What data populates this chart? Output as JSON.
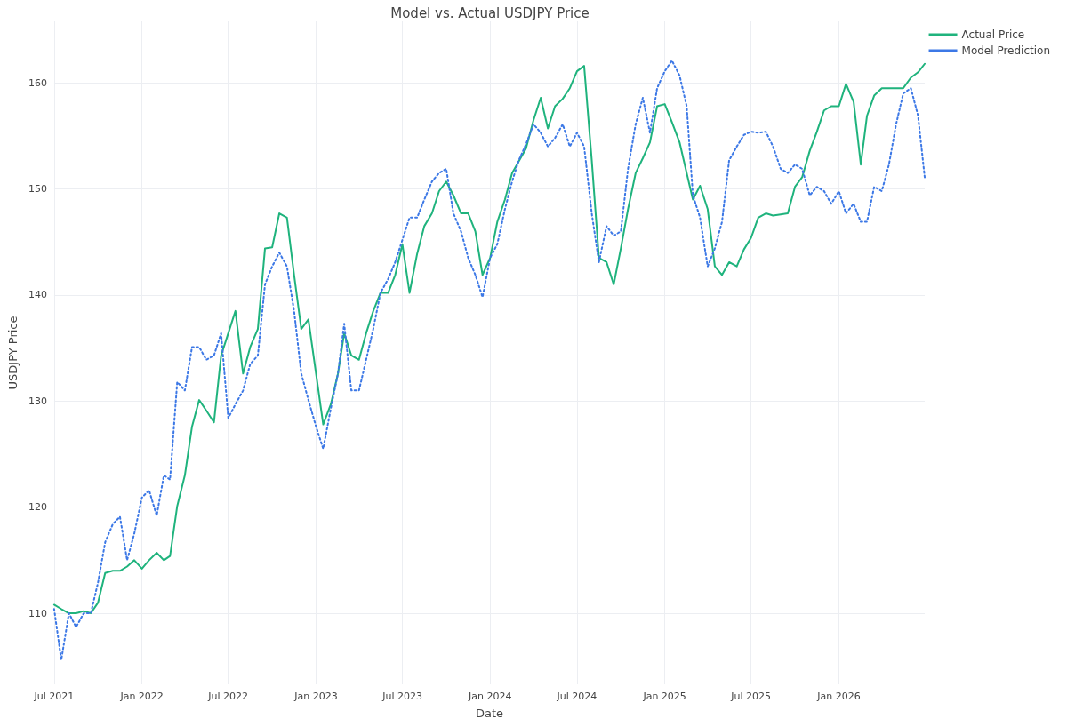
{
  "chart_data": {
    "type": "line",
    "title": "Model vs. Actual USDJPY Price",
    "xlabel": "Date",
    "ylabel": "USDJPY Price",
    "x": [
      "2021-07-01",
      "2021-07-16",
      "2021-08-01",
      "2021-08-16",
      "2021-09-01",
      "2021-09-16",
      "2021-10-01",
      "2021-10-16",
      "2021-11-01",
      "2021-11-16",
      "2021-12-01",
      "2021-12-16",
      "2022-01-01",
      "2022-01-16",
      "2022-02-01",
      "2022-02-16",
      "2022-03-01",
      "2022-03-16",
      "2022-04-01",
      "2022-04-16",
      "2022-05-01",
      "2022-05-16",
      "2022-06-01",
      "2022-06-16",
      "2022-07-01",
      "2022-07-16",
      "2022-08-01",
      "2022-08-16",
      "2022-09-01",
      "2022-09-16",
      "2022-10-01",
      "2022-10-16",
      "2022-11-01",
      "2022-11-16",
      "2022-12-01",
      "2022-12-16",
      "2023-01-01",
      "2023-01-16",
      "2023-02-01",
      "2023-02-16",
      "2023-03-01",
      "2023-03-16",
      "2023-04-01",
      "2023-04-16",
      "2023-05-01",
      "2023-05-16",
      "2023-06-01",
      "2023-06-16",
      "2023-07-01",
      "2023-07-16",
      "2023-08-01",
      "2023-08-16",
      "2023-09-01",
      "2023-09-16",
      "2023-10-01",
      "2023-10-16",
      "2023-11-01",
      "2023-11-16",
      "2023-12-01",
      "2023-12-16",
      "2024-01-01",
      "2024-01-16",
      "2024-02-01",
      "2024-02-16",
      "2024-03-01",
      "2024-03-16",
      "2024-04-01",
      "2024-04-16",
      "2024-05-01",
      "2024-05-16",
      "2024-06-01",
      "2024-06-16",
      "2024-07-01",
      "2024-07-16",
      "2024-08-01",
      "2024-08-16",
      "2024-09-01",
      "2024-09-16",
      "2024-10-01",
      "2024-10-16",
      "2024-11-01",
      "2024-11-16",
      "2024-12-01",
      "2024-12-16",
      "2025-01-01",
      "2025-01-16",
      "2025-02-01",
      "2025-02-16",
      "2025-03-01",
      "2025-03-16",
      "2025-04-01",
      "2025-04-16",
      "2025-05-01",
      "2025-05-16",
      "2025-06-01",
      "2025-06-16",
      "2025-07-01",
      "2025-07-16",
      "2025-08-01",
      "2025-08-16",
      "2025-09-01",
      "2025-09-16",
      "2025-10-01",
      "2025-10-16",
      "2025-11-01",
      "2025-11-16",
      "2025-12-01",
      "2025-12-16",
      "2026-01-01",
      "2026-01-16",
      "2026-02-01",
      "2026-02-16",
      "2026-03-01",
      "2026-03-16",
      "2026-04-01",
      "2026-04-16",
      "2026-05-01",
      "2026-05-16",
      "2026-06-01",
      "2026-06-16",
      "2026-06-30"
    ],
    "series": [
      {
        "name": "Actual Price",
        "color": "#1fb37d",
        "line_style": "solid",
        "values": [
          110.8,
          110.4,
          110.0,
          110.0,
          110.2,
          110.0,
          111.0,
          113.8,
          114.0,
          114.0,
          114.4,
          115.0,
          114.2,
          115.0,
          115.7,
          115.0,
          115.4,
          120.1,
          123.0,
          127.6,
          130.1,
          129.1,
          128.0,
          134.3,
          136.4,
          138.5,
          132.6,
          135.1,
          136.8,
          144.4,
          144.5,
          147.7,
          147.3,
          141.9,
          136.8,
          137.7,
          132.6,
          127.8,
          129.7,
          132.6,
          136.4,
          134.3,
          133.9,
          136.4,
          138.5,
          140.2,
          140.2,
          141.9,
          144.8,
          140.2,
          143.9,
          146.5,
          147.7,
          149.8,
          150.7,
          149.4,
          147.7,
          147.7,
          146.0,
          141.9,
          143.5,
          146.9,
          149.0,
          151.5,
          152.6,
          153.8,
          156.5,
          158.6,
          155.7,
          157.8,
          158.5,
          159.5,
          161.1,
          161.6,
          152.7,
          143.5,
          143.1,
          141.0,
          144.4,
          148.1,
          151.5,
          152.9,
          154.4,
          157.8,
          158.0,
          156.3,
          154.4,
          151.5,
          149.0,
          150.3,
          148.1,
          142.7,
          141.9,
          143.1,
          142.7,
          144.3,
          145.4,
          147.3,
          147.7,
          147.5,
          147.6,
          147.7,
          150.2,
          151.1,
          153.6,
          155.4,
          157.4,
          157.8,
          157.8,
          159.9,
          158.2,
          152.3,
          156.9,
          158.8,
          159.5,
          159.5,
          159.5,
          159.5,
          160.5,
          161.0,
          161.8
        ]
      },
      {
        "name": "Model Prediction",
        "color": "#3c78e6",
        "line_style": "dotted",
        "values": [
          110.4,
          105.6,
          110.0,
          108.7,
          110.0,
          110.0,
          112.9,
          116.7,
          118.4,
          119.1,
          115.0,
          117.5,
          120.9,
          121.6,
          119.2,
          123.0,
          122.6,
          131.8,
          131.0,
          135.1,
          135.1,
          133.9,
          134.3,
          136.4,
          128.4,
          129.7,
          131.0,
          133.5,
          134.3,
          141.0,
          142.7,
          144.0,
          142.7,
          138.5,
          132.6,
          130.1,
          127.6,
          125.5,
          129.3,
          132.6,
          137.3,
          131.0,
          131.0,
          133.9,
          136.8,
          140.2,
          141.5,
          143.1,
          145.2,
          147.3,
          147.3,
          149.0,
          150.7,
          151.5,
          151.9,
          147.7,
          146.0,
          143.5,
          141.9,
          139.8,
          143.5,
          144.8,
          148.1,
          150.7,
          152.7,
          154.2,
          156.1,
          155.3,
          154.0,
          154.8,
          156.1,
          154.0,
          155.3,
          154.0,
          147.7,
          143.1,
          146.5,
          145.6,
          146.0,
          151.9,
          156.1,
          158.6,
          155.3,
          159.5,
          161.1,
          162.1,
          160.7,
          157.8,
          149.4,
          147.3,
          142.7,
          144.4,
          146.9,
          152.7,
          154.0,
          155.1,
          155.4,
          155.3,
          155.4,
          154.0,
          151.9,
          151.5,
          152.3,
          151.9,
          149.4,
          150.2,
          149.8,
          148.6,
          149.8,
          147.7,
          148.6,
          146.9,
          146.9,
          150.2,
          149.8,
          152.3,
          156.1,
          159.0,
          159.5,
          156.9,
          151.1
        ]
      }
    ],
    "xlim": [
      "2021-07-01",
      "2026-06-30"
    ],
    "xticks": [
      {
        "value": "2021-07-01",
        "label": "Jul 2021"
      },
      {
        "value": "2022-01-01",
        "label": "Jan 2022"
      },
      {
        "value": "2022-07-01",
        "label": "Jul 2022"
      },
      {
        "value": "2023-01-01",
        "label": "Jan 2023"
      },
      {
        "value": "2023-07-01",
        "label": "Jul 2023"
      },
      {
        "value": "2024-01-01",
        "label": "Jan 2024"
      },
      {
        "value": "2024-07-01",
        "label": "Jul 2024"
      },
      {
        "value": "2025-01-01",
        "label": "Jan 2025"
      },
      {
        "value": "2025-07-01",
        "label": "Jul 2025"
      },
      {
        "value": "2026-01-01",
        "label": "Jan 2026"
      }
    ],
    "ylim": [
      103.3,
      165.8
    ],
    "yticks": [
      110,
      120,
      130,
      140,
      150,
      160
    ],
    "grid": true,
    "legend": "top right",
    "marker": "none"
  }
}
